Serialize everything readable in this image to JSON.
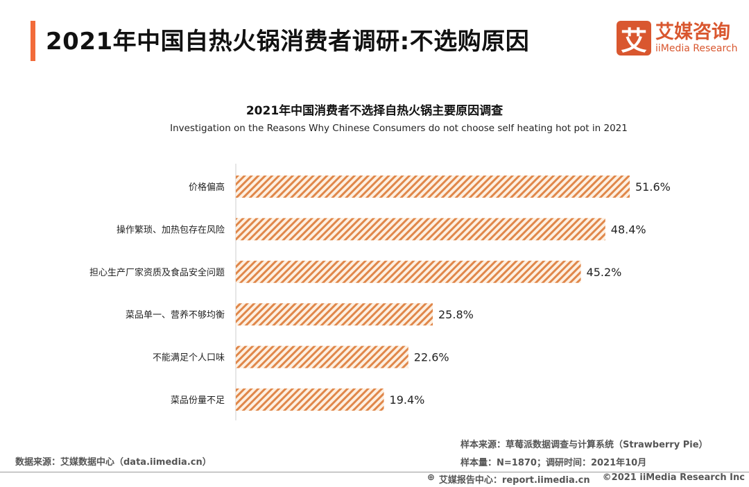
{
  "header": {
    "title": "2021年中国自热火锅消费者调研:不选购原因",
    "logo_mark": "艾",
    "logo_cn": "艾媒咨询",
    "logo_en": "iiMedia Research"
  },
  "chart_data": {
    "type": "bar",
    "orientation": "horizontal",
    "title": "2021年中国消费者不选择自热火锅主要原因调查",
    "subtitle": "Investigation on the Reasons Why Chinese Consumers do not choose self heating hot pot in 2021",
    "categories": [
      "价格偏高",
      "操作繁琐、加热包存在风险",
      "担心生产厂家资质及食品安全问题",
      "菜品单一、营养不够均衡",
      "不能满足个人口味",
      "菜品份量不足"
    ],
    "values": [
      51.6,
      48.4,
      45.2,
      25.8,
      22.6,
      19.4
    ],
    "labels": [
      "51.6%",
      "48.4%",
      "45.2%",
      "25.8%",
      "22.6%",
      "19.4%"
    ],
    "unit": "%",
    "xlim": [
      0,
      55
    ],
    "bar_color": "#e0874a"
  },
  "footer": {
    "source": "数据来源：艾媒数据中心（data.iimedia.cn）",
    "sample_source": "样本来源：草莓派数据调查与计算系统（Strawberry Pie）",
    "sample_size": "样本量：N=1870；调研时间：2021年10月",
    "report": "艾媒报告中心：report.iimedia.cn",
    "copyright": "©2021  iiMedia Research  Inc"
  }
}
